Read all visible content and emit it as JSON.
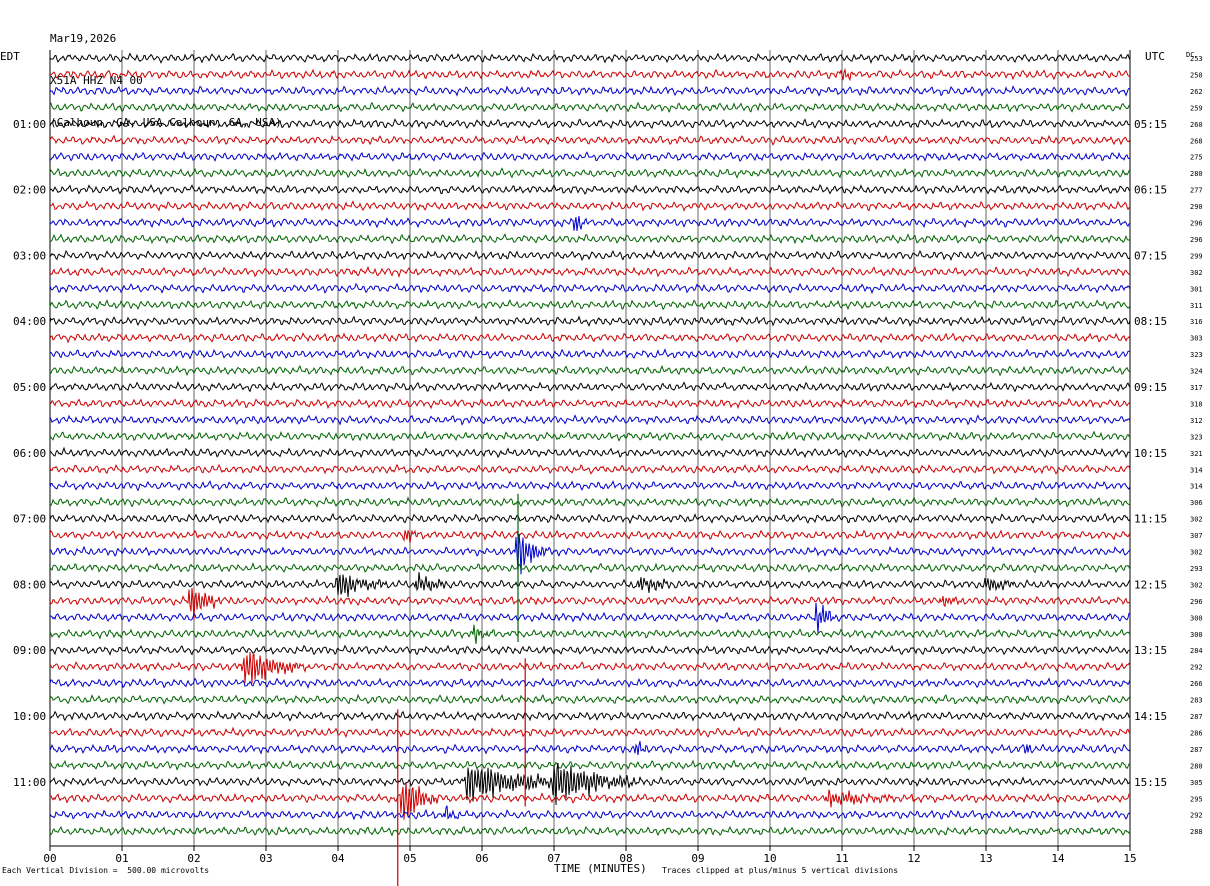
{
  "header": {
    "date": "Mar19,2026",
    "station": "X51A HHZ N4 00",
    "location": "(Calhoun, GA, USA Calhoun, GA, USA)"
  },
  "left_tz": "EDT",
  "right_tz": "UTC",
  "dc_label": "DC",
  "xaxis_title": "TIME (MINUTES)",
  "footer_left": "Each Vertical Division =  500.00 microvolts",
  "footer_right": "Traces clipped at plus/minus 5 vertical divisions",
  "colors": {
    "trace_cycle": [
      "#000000",
      "#cc0000",
      "#0000cc",
      "#006400"
    ],
    "grid": "#000000"
  },
  "chart_data": {
    "type": "seismogram",
    "x_ticks": [
      "00",
      "01",
      "02",
      "03",
      "04",
      "05",
      "06",
      "07",
      "08",
      "09",
      "10",
      "11",
      "12",
      "13",
      "14",
      "15"
    ],
    "xlim": [
      0,
      15
    ],
    "left_hour_labels": [
      {
        "row": 4,
        "text": "01:00"
      },
      {
        "row": 8,
        "text": "02:00"
      },
      {
        "row": 12,
        "text": "03:00"
      },
      {
        "row": 16,
        "text": "04:00"
      },
      {
        "row": 20,
        "text": "05:00"
      },
      {
        "row": 24,
        "text": "06:00"
      },
      {
        "row": 28,
        "text": "07:00"
      },
      {
        "row": 32,
        "text": "08:00"
      },
      {
        "row": 36,
        "text": "09:00"
      },
      {
        "row": 40,
        "text": "10:00"
      },
      {
        "row": 44,
        "text": "11:00"
      }
    ],
    "right_hour_labels": [
      {
        "row": 4,
        "text": "05:15"
      },
      {
        "row": 8,
        "text": "06:15"
      },
      {
        "row": 12,
        "text": "07:15"
      },
      {
        "row": 16,
        "text": "08:15"
      },
      {
        "row": 20,
        "text": "09:15"
      },
      {
        "row": 24,
        "text": "10:15"
      },
      {
        "row": 28,
        "text": "11:15"
      },
      {
        "row": 32,
        "text": "12:15"
      },
      {
        "row": 36,
        "text": "13:15"
      },
      {
        "row": 40,
        "text": "14:15"
      },
      {
        "row": 44,
        "text": "15:15"
      }
    ],
    "dc_offsets": [
      "253",
      "250",
      "262",
      "259",
      "260",
      "268",
      "275",
      "280",
      "277",
      "290",
      "296",
      "296",
      "299",
      "302",
      "301",
      "311",
      "316",
      "303",
      "323",
      "324",
      "317",
      "318",
      "312",
      "323",
      "321",
      "314",
      "314",
      "306",
      "302",
      "307",
      "302",
      "293",
      "302",
      "296",
      "300",
      "300",
      "284",
      "292",
      "266",
      "283",
      "287",
      "286",
      "287",
      "280",
      "305",
      "295",
      "292",
      "288"
    ],
    "events": [
      {
        "row": 1,
        "minute": 11.0,
        "duration": 0.3,
        "amp": 1.2
      },
      {
        "row": 10,
        "minute": 7.3,
        "duration": 0.2,
        "amp": 1.8
      },
      {
        "row": 29,
        "minute": 4.95,
        "duration": 0.3,
        "amp": 1.6
      },
      {
        "row": 30,
        "minute": 6.5,
        "duration": 0.4,
        "amp": 5.0
      },
      {
        "row": 32,
        "minute": 4.0,
        "duration": 0.8,
        "amp": 2.5
      },
      {
        "row": 32,
        "minute": 5.1,
        "duration": 0.5,
        "amp": 2.0
      },
      {
        "row": 32,
        "minute": 8.2,
        "duration": 0.5,
        "amp": 1.8
      },
      {
        "row": 32,
        "minute": 13.0,
        "duration": 0.5,
        "amp": 1.6
      },
      {
        "row": 33,
        "minute": 1.95,
        "duration": 0.5,
        "amp": 3.2
      },
      {
        "row": 33,
        "minute": 12.4,
        "duration": 0.3,
        "amp": 1.4
      },
      {
        "row": 34,
        "minute": 10.65,
        "duration": 0.3,
        "amp": 3.0
      },
      {
        "row": 35,
        "minute": 5.9,
        "duration": 0.3,
        "amp": 1.8
      },
      {
        "row": 37,
        "minute": 2.7,
        "duration": 0.9,
        "amp": 4.0
      },
      {
        "row": 42,
        "minute": 8.15,
        "duration": 0.2,
        "amp": 1.4
      },
      {
        "row": 42,
        "minute": 13.55,
        "duration": 0.2,
        "amp": 1.4
      },
      {
        "row": 44,
        "minute": 5.8,
        "duration": 1.6,
        "amp": 4.0
      },
      {
        "row": 44,
        "minute": 7.0,
        "duration": 1.2,
        "amp": 4.5
      },
      {
        "row": 45,
        "minute": 4.9,
        "duration": 0.5,
        "amp": 5.0
      },
      {
        "row": 45,
        "minute": 10.8,
        "duration": 1.2,
        "amp": 1.6
      },
      {
        "row": 46,
        "minute": 5.5,
        "duration": 0.2,
        "amp": 1.8
      }
    ],
    "spikes": [
      {
        "row": 31,
        "minute": 6.5,
        "height": 5
      },
      {
        "row": 41,
        "minute": 6.6,
        "height": 5
      },
      {
        "row": 45,
        "minute": 4.83,
        "height": 6
      }
    ]
  }
}
